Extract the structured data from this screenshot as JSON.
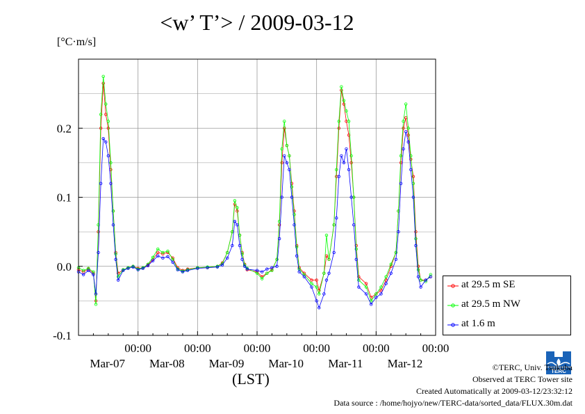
{
  "title": "<w’ T’> / 2009-03-12",
  "y_unit": "[°C·m/s]",
  "xlabel": "(LST)",
  "colors": {
    "se": "#ff0000",
    "nw": "#00ff00",
    "ground": "#0000ff",
    "grid": "#999999"
  },
  "credits": {
    "copyright": "©TERC, Univ. Tsukuba",
    "site": "Observed at TERC Tower site",
    "created": "Created Automatically at 2009-03-12/23:32:12",
    "source": "Data source : /home/hojyo/new/TERC-data/sorted_data/FLUX.30m.dat"
  },
  "logo_text": "TERC",
  "chart_data": {
    "type": "line",
    "title": "<w’ T’> / 2009-03-12",
    "ylabel": "[°C·m/s]",
    "xlabel": "(LST)",
    "ylim": [
      -0.1,
      0.3
    ],
    "xlim_hours": [
      0,
      144
    ],
    "yticks": [
      -0.1,
      0.0,
      0.1,
      0.2
    ],
    "ytick_labels": [
      "-0.1",
      "0.0",
      "0.1",
      "0.2"
    ],
    "xticks": [
      {
        "hour": 24,
        "time": "00:00",
        "date": "Mar-07"
      },
      {
        "hour": 48,
        "time": "00:00",
        "date": "Mar-08"
      },
      {
        "hour": 72,
        "time": "00:00",
        "date": "Mar-09"
      },
      {
        "hour": 96,
        "time": "00:00",
        "date": "Mar-10"
      },
      {
        "hour": 120,
        "time": "00:00",
        "date": "Mar-11"
      },
      {
        "hour": 144,
        "time": "00:00",
        "date": "Mar-12"
      }
    ],
    "grid": true,
    "legend_position": "right, outside below",
    "series": [
      {
        "name": "at 29.5 m SE",
        "color": "#ff0000",
        "points": [
          [
            0,
            -0.005
          ],
          [
            2,
            -0.008
          ],
          [
            4,
            -0.004
          ],
          [
            6,
            -0.01
          ],
          [
            7,
            -0.05
          ],
          [
            8,
            0.05
          ],
          [
            9,
            0.2
          ],
          [
            10,
            0.265
          ],
          [
            11,
            0.22
          ],
          [
            12,
            0.2
          ],
          [
            13,
            0.14
          ],
          [
            14,
            0.08
          ],
          [
            15,
            0.02
          ],
          [
            16,
            -0.01
          ],
          [
            18,
            -0.005
          ],
          [
            20,
            -0.002
          ],
          [
            22,
            0.0
          ],
          [
            24,
            -0.003
          ],
          [
            26,
            -0.002
          ],
          [
            28,
            0.002
          ],
          [
            30,
            0.01
          ],
          [
            32,
            0.02
          ],
          [
            34,
            0.018
          ],
          [
            36,
            0.02
          ],
          [
            38,
            0.012
          ],
          [
            40,
            -0.002
          ],
          [
            42,
            -0.006
          ],
          [
            44,
            -0.004
          ],
          [
            48,
            -0.002
          ],
          [
            52,
            -0.002
          ],
          [
            56,
            0.0
          ],
          [
            58,
            0.005
          ],
          [
            60,
            0.02
          ],
          [
            62,
            0.05
          ],
          [
            63,
            0.09
          ],
          [
            64,
            0.08
          ],
          [
            65,
            0.045
          ],
          [
            66,
            0.02
          ],
          [
            67,
            0.003
          ],
          [
            68,
            -0.005
          ],
          [
            72,
            -0.008
          ],
          [
            74,
            -0.015
          ],
          [
            76,
            -0.01
          ],
          [
            78,
            -0.005
          ],
          [
            80,
            0.01
          ],
          [
            81,
            0.06
          ],
          [
            82,
            0.15
          ],
          [
            83,
            0.2
          ],
          [
            84,
            0.175
          ],
          [
            85,
            0.16
          ],
          [
            86,
            0.12
          ],
          [
            87,
            0.08
          ],
          [
            88,
            0.03
          ],
          [
            89,
            -0.002
          ],
          [
            91,
            -0.01
          ],
          [
            94,
            -0.02
          ],
          [
            96,
            -0.02
          ],
          [
            97,
            -0.035
          ],
          [
            99,
            -0.01
          ],
          [
            100,
            0.015
          ],
          [
            101,
            0.01
          ],
          [
            103,
            0.06
          ],
          [
            104,
            0.13
          ],
          [
            105,
            0.2
          ],
          [
            106,
            0.255
          ],
          [
            107,
            0.235
          ],
          [
            108,
            0.21
          ],
          [
            109,
            0.19
          ],
          [
            110,
            0.15
          ],
          [
            111,
            0.1
          ],
          [
            112,
            0.03
          ],
          [
            113,
            -0.015
          ],
          [
            116,
            -0.025
          ],
          [
            118,
            -0.045
          ],
          [
            120,
            -0.04
          ],
          [
            122,
            -0.035
          ],
          [
            124,
            -0.02
          ],
          [
            126,
            0.0
          ],
          [
            128,
            0.02
          ],
          [
            129,
            0.08
          ],
          [
            130,
            0.15
          ],
          [
            131,
            0.2
          ],
          [
            132,
            0.215
          ],
          [
            133,
            0.19
          ],
          [
            134,
            0.155
          ],
          [
            135,
            0.13
          ],
          [
            136,
            0.05
          ],
          [
            137,
            0.0
          ],
          [
            138,
            -0.02
          ],
          [
            140,
            -0.02
          ],
          [
            142,
            -0.015
          ]
        ]
      },
      {
        "name": "at 29.5 m NW",
        "color": "#00ff00",
        "points": [
          [
            0,
            -0.002
          ],
          [
            2,
            -0.006
          ],
          [
            4,
            -0.003
          ],
          [
            6,
            -0.008
          ],
          [
            7,
            -0.055
          ],
          [
            8,
            0.06
          ],
          [
            9,
            0.22
          ],
          [
            10,
            0.275
          ],
          [
            11,
            0.235
          ],
          [
            12,
            0.21
          ],
          [
            13,
            0.15
          ],
          [
            14,
            0.08
          ],
          [
            15,
            0.018
          ],
          [
            16,
            -0.015
          ],
          [
            18,
            -0.005
          ],
          [
            20,
            -0.002
          ],
          [
            22,
            0.0
          ],
          [
            24,
            -0.004
          ],
          [
            26,
            -0.002
          ],
          [
            28,
            0.003
          ],
          [
            30,
            0.013
          ],
          [
            32,
            0.025
          ],
          [
            34,
            0.02
          ],
          [
            36,
            0.022
          ],
          [
            38,
            0.01
          ],
          [
            40,
            -0.004
          ],
          [
            42,
            -0.007
          ],
          [
            44,
            -0.005
          ],
          [
            48,
            -0.002
          ],
          [
            52,
            -0.001
          ],
          [
            56,
            0.0
          ],
          [
            58,
            0.004
          ],
          [
            60,
            0.02
          ],
          [
            62,
            0.05
          ],
          [
            63,
            0.095
          ],
          [
            64,
            0.085
          ],
          [
            65,
            0.045
          ],
          [
            66,
            0.018
          ],
          [
            67,
            0.002
          ],
          [
            68,
            -0.003
          ],
          [
            72,
            -0.01
          ],
          [
            74,
            -0.018
          ],
          [
            76,
            -0.01
          ],
          [
            78,
            -0.006
          ],
          [
            80,
            0.01
          ],
          [
            81,
            0.065
          ],
          [
            82,
            0.17
          ],
          [
            83,
            0.21
          ],
          [
            84,
            0.175
          ],
          [
            85,
            0.16
          ],
          [
            86,
            0.115
          ],
          [
            87,
            0.075
          ],
          [
            88,
            0.028
          ],
          [
            89,
            -0.004
          ],
          [
            91,
            -0.012
          ],
          [
            94,
            -0.025
          ],
          [
            96,
            -0.03
          ],
          [
            97,
            -0.04
          ],
          [
            99,
            -0.01
          ],
          [
            100,
            0.045
          ],
          [
            101,
            0.01
          ],
          [
            103,
            0.06
          ],
          [
            104,
            0.14
          ],
          [
            105,
            0.21
          ],
          [
            106,
            0.26
          ],
          [
            107,
            0.24
          ],
          [
            108,
            0.225
          ],
          [
            109,
            0.21
          ],
          [
            110,
            0.16
          ],
          [
            111,
            0.1
          ],
          [
            112,
            0.025
          ],
          [
            113,
            -0.02
          ],
          [
            116,
            -0.03
          ],
          [
            118,
            -0.05
          ],
          [
            120,
            -0.04
          ],
          [
            122,
            -0.03
          ],
          [
            124,
            -0.015
          ],
          [
            126,
            0.003
          ],
          [
            128,
            0.02
          ],
          [
            129,
            0.08
          ],
          [
            130,
            0.16
          ],
          [
            131,
            0.21
          ],
          [
            132,
            0.235
          ],
          [
            133,
            0.2
          ],
          [
            134,
            0.16
          ],
          [
            135,
            0.12
          ],
          [
            136,
            0.04
          ],
          [
            137,
            -0.005
          ],
          [
            138,
            -0.02
          ],
          [
            140,
            -0.022
          ],
          [
            142,
            -0.012
          ]
        ]
      },
      {
        "name": "at 1.6 m",
        "color": "#0000ff",
        "points": [
          [
            0,
            -0.008
          ],
          [
            2,
            -0.012
          ],
          [
            4,
            -0.006
          ],
          [
            6,
            -0.012
          ],
          [
            7,
            -0.04
          ],
          [
            8,
            0.02
          ],
          [
            9,
            0.12
          ],
          [
            10,
            0.185
          ],
          [
            11,
            0.18
          ],
          [
            12,
            0.16
          ],
          [
            13,
            0.12
          ],
          [
            14,
            0.06
          ],
          [
            15,
            0.01
          ],
          [
            16,
            -0.02
          ],
          [
            18,
            -0.006
          ],
          [
            20,
            -0.003
          ],
          [
            22,
            -0.001
          ],
          [
            24,
            -0.005
          ],
          [
            26,
            -0.003
          ],
          [
            28,
            0.001
          ],
          [
            30,
            0.008
          ],
          [
            32,
            0.015
          ],
          [
            34,
            0.012
          ],
          [
            36,
            0.014
          ],
          [
            38,
            0.006
          ],
          [
            40,
            -0.005
          ],
          [
            42,
            -0.008
          ],
          [
            44,
            -0.006
          ],
          [
            48,
            -0.003
          ],
          [
            52,
            -0.002
          ],
          [
            56,
            -0.001
          ],
          [
            58,
            0.002
          ],
          [
            60,
            0.012
          ],
          [
            62,
            0.03
          ],
          [
            63,
            0.065
          ],
          [
            64,
            0.06
          ],
          [
            65,
            0.03
          ],
          [
            66,
            0.01
          ],
          [
            67,
            0.0
          ],
          [
            68,
            -0.004
          ],
          [
            72,
            -0.006
          ],
          [
            74,
            -0.008
          ],
          [
            76,
            -0.004
          ],
          [
            78,
            -0.002
          ],
          [
            80,
            0.0
          ],
          [
            81,
            0.04
          ],
          [
            82,
            0.1
          ],
          [
            83,
            0.16
          ],
          [
            84,
            0.15
          ],
          [
            85,
            0.14
          ],
          [
            86,
            0.1
          ],
          [
            87,
            0.06
          ],
          [
            88,
            0.015
          ],
          [
            89,
            -0.008
          ],
          [
            91,
            -0.015
          ],
          [
            94,
            -0.03
          ],
          [
            96,
            -0.05
          ],
          [
            97,
            -0.06
          ],
          [
            99,
            -0.04
          ],
          [
            100,
            -0.02
          ],
          [
            101,
            -0.01
          ],
          [
            103,
            0.02
          ],
          [
            104,
            0.07
          ],
          [
            105,
            0.13
          ],
          [
            106,
            0.16
          ],
          [
            107,
            0.15
          ],
          [
            108,
            0.17
          ],
          [
            109,
            0.14
          ],
          [
            110,
            0.1
          ],
          [
            111,
            0.06
          ],
          [
            112,
            0.01
          ],
          [
            113,
            -0.03
          ],
          [
            116,
            -0.04
          ],
          [
            118,
            -0.055
          ],
          [
            120,
            -0.045
          ],
          [
            122,
            -0.04
          ],
          [
            124,
            -0.025
          ],
          [
            126,
            -0.01
          ],
          [
            128,
            0.01
          ],
          [
            129,
            0.05
          ],
          [
            130,
            0.12
          ],
          [
            131,
            0.17
          ],
          [
            132,
            0.195
          ],
          [
            133,
            0.18
          ],
          [
            134,
            0.14
          ],
          [
            135,
            0.1
          ],
          [
            136,
            0.03
          ],
          [
            137,
            -0.015
          ],
          [
            138,
            -0.03
          ],
          [
            140,
            -0.02
          ],
          [
            142,
            -0.015
          ]
        ]
      }
    ]
  }
}
